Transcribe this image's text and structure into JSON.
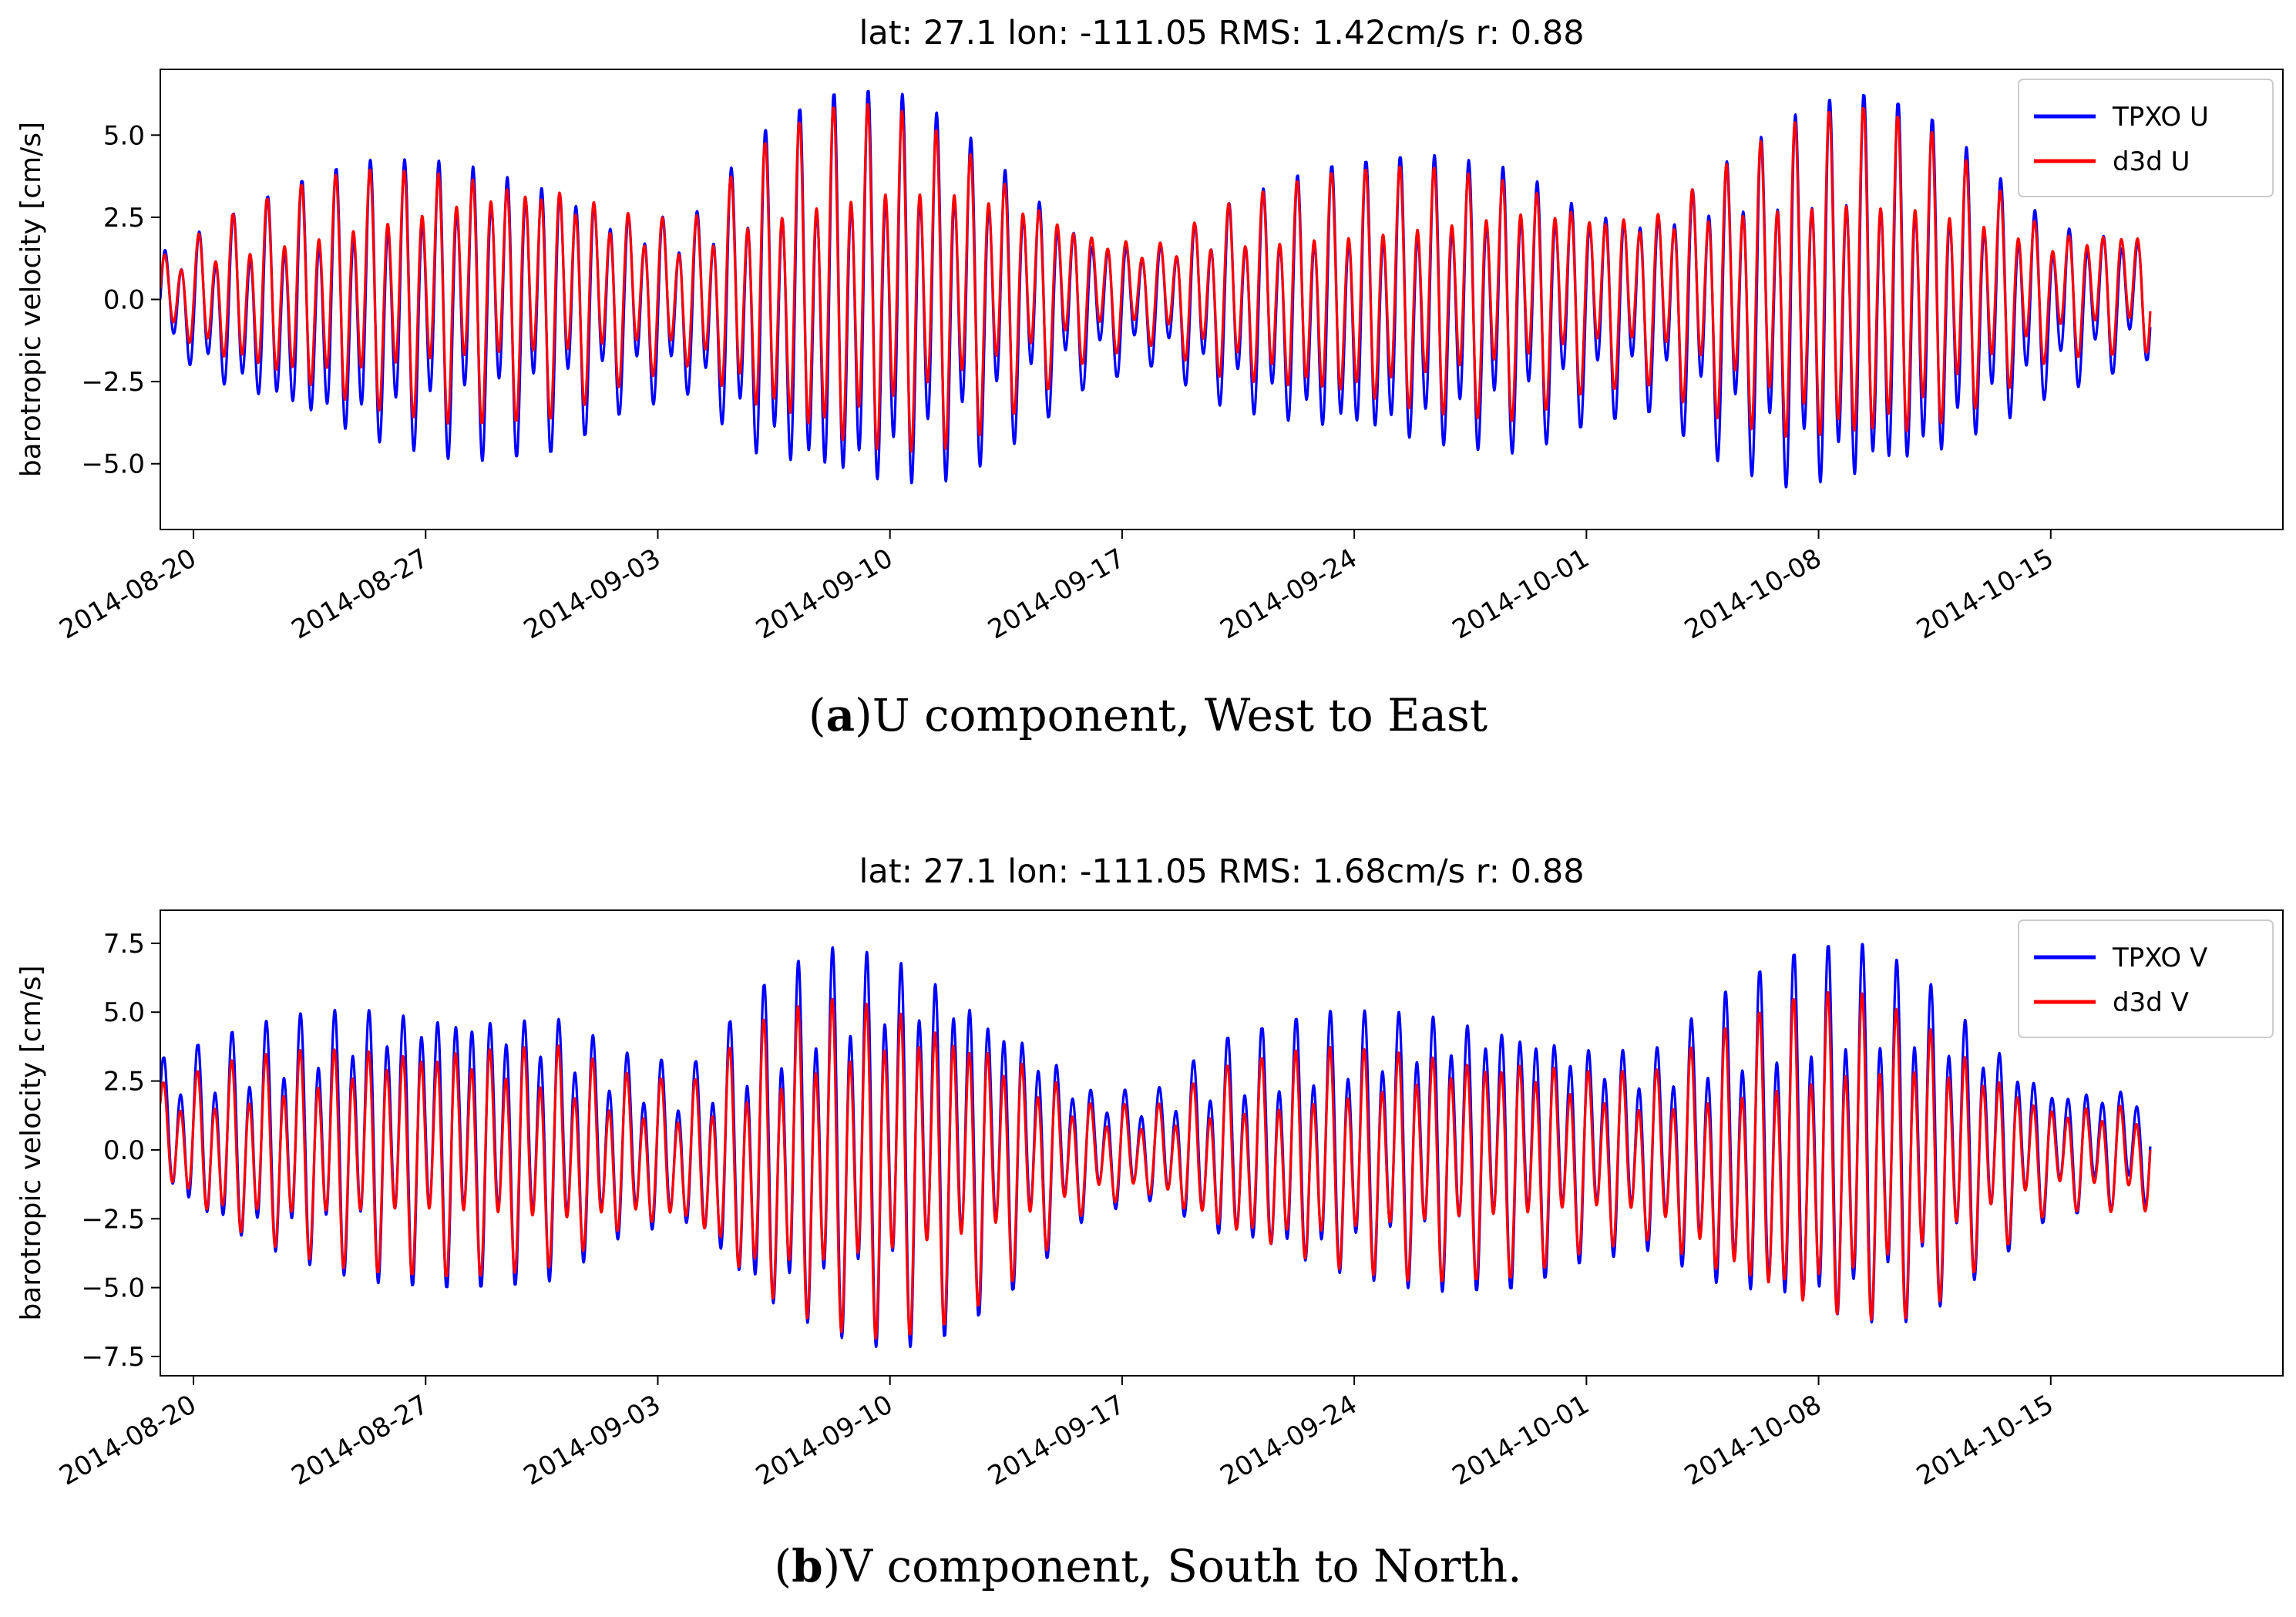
{
  "colors": {
    "tpxo": "#0000ff",
    "d3d": "#ff0000"
  },
  "captions": [
    {
      "letter": "a",
      "text": "U component, West to East"
    },
    {
      "letter": "b",
      "text": "V component, South to North."
    }
  ],
  "chart_data": [
    {
      "type": "line",
      "title": "lat: 27.1 lon: -111.05 RMS: 1.42cm/s r: 0.88",
      "xlabel": "",
      "ylabel": "barotropic velocity [cm/s]",
      "xlim": [
        "2014-08-19",
        "2014-10-22"
      ],
      "ylim": [
        -7.0,
        7.0
      ],
      "yticks": [
        -5.0,
        -2.5,
        0.0,
        2.5,
        5.0
      ],
      "ytick_labels": [
        "−5.0",
        "−2.5",
        "0.0",
        "2.5",
        "5.0"
      ],
      "xticks": [
        "2014-08-20",
        "2014-08-27",
        "2014-09-03",
        "2014-09-10",
        "2014-09-17",
        "2014-09-24",
        "2014-10-01",
        "2014-10-08",
        "2014-10-15"
      ],
      "x_range": [
        "2014-08-19",
        "2014-10-18"
      ],
      "grid": false,
      "legend_position": "top-right",
      "series": [
        {
          "name": "TPXO U",
          "color": "#0000ff",
          "envelope": {
            "x": [
              "2014-08-19",
              "2014-08-21",
              "2014-08-23",
              "2014-08-25",
              "2014-08-28",
              "2014-08-31",
              "2014-09-02",
              "2014-09-04",
              "2014-09-06",
              "2014-09-08",
              "2014-09-10",
              "2014-09-12",
              "2014-09-14",
              "2014-09-16",
              "2014-09-18",
              "2014-09-20",
              "2014-09-23",
              "2014-09-26",
              "2014-09-29",
              "2014-10-01",
              "2014-10-03",
              "2014-10-05",
              "2014-10-07",
              "2014-10-09",
              "2014-10-11",
              "2014-10-13",
              "2014-10-15",
              "2014-10-18"
            ],
            "upper": [
              1.5,
              2.5,
              3.5,
              4.2,
              4.6,
              4.3,
              3.0,
              2.6,
              5.0,
              6.2,
              6.4,
              5.6,
              4.0,
              2.2,
              1.8,
              3.0,
              4.0,
              4.4,
              4.3,
              3.3,
              3.0,
              4.5,
              5.6,
              6.3,
              5.8,
              4.2,
              2.5,
              2.1
            ],
            "lower": [
              -1.5,
              -3.0,
              -4.0,
              -4.8,
              -5.0,
              -4.6,
              -3.4,
              -3.0,
              -5.4,
              -6.5,
              -6.5,
              -5.8,
              -4.2,
              -2.6,
              -2.0,
              -3.4,
              -4.6,
              -5.0,
              -4.8,
              -3.8,
              -3.4,
              -5.0,
              -6.2,
              -6.5,
              -6.0,
              -4.4,
              -3.0,
              -1.8
            ]
          }
        },
        {
          "name": "d3d U",
          "color": "#ff0000",
          "envelope": {
            "x": [
              "2014-08-19",
              "2014-08-21",
              "2014-08-23",
              "2014-08-25",
              "2014-08-28",
              "2014-08-31",
              "2014-09-02",
              "2014-09-04",
              "2014-09-06",
              "2014-09-08",
              "2014-09-10",
              "2014-09-12",
              "2014-09-14",
              "2014-09-16",
              "2014-09-18",
              "2014-09-20",
              "2014-09-23",
              "2014-09-26",
              "2014-09-29",
              "2014-10-01",
              "2014-10-03",
              "2014-10-05",
              "2014-10-07",
              "2014-10-09",
              "2014-10-11",
              "2014-10-13",
              "2014-10-15",
              "2014-10-18"
            ],
            "upper": [
              1.3,
              2.5,
              3.4,
              4.0,
              4.3,
              4.0,
              2.9,
              2.4,
              4.6,
              5.8,
              6.0,
              5.2,
              3.7,
              2.3,
              1.8,
              2.9,
              3.8,
              4.1,
              4.0,
              3.1,
              2.9,
              4.2,
              5.3,
              5.9,
              5.4,
              3.9,
              2.2,
              2.4
            ],
            "lower": [
              -1.0,
              -2.2,
              -3.0,
              -3.6,
              -3.8,
              -3.6,
              -2.6,
              -2.2,
              -4.0,
              -5.2,
              -5.2,
              -4.6,
              -3.3,
              -1.8,
              -1.4,
              -2.6,
              -3.5,
              -3.8,
              -3.7,
              -2.8,
              -2.6,
              -3.8,
              -4.8,
              -5.3,
              -4.8,
              -3.4,
              -1.8,
              -1.6
            ]
          }
        }
      ]
    },
    {
      "type": "line",
      "title": "lat: 27.1 lon: -111.05 RMS: 1.68cm/s r: 0.88",
      "xlabel": "",
      "ylabel": "barotropic velocity [cm/s]",
      "xlim": [
        "2014-08-19",
        "2014-10-22"
      ],
      "ylim": [
        -8.2,
        8.7
      ],
      "yticks": [
        -7.5,
        -5.0,
        -2.5,
        0.0,
        2.5,
        5.0,
        7.5
      ],
      "ytick_labels": [
        "−7.5",
        "−5.0",
        "−2.5",
        "0.0",
        "2.5",
        "5.0",
        "7.5"
      ],
      "xticks": [
        "2014-08-20",
        "2014-08-27",
        "2014-09-03",
        "2014-09-10",
        "2014-09-17",
        "2014-09-24",
        "2014-10-01",
        "2014-10-08",
        "2014-10-15"
      ],
      "x_range": [
        "2014-08-19",
        "2014-10-18"
      ],
      "grid": false,
      "legend_position": "top-right",
      "series": [
        {
          "name": "TPXO V",
          "color": "#0000ff",
          "envelope": {
            "x": [
              "2014-08-19",
              "2014-08-21",
              "2014-08-23",
              "2014-08-25",
              "2014-08-28",
              "2014-08-31",
              "2014-09-02",
              "2014-09-04",
              "2014-09-06",
              "2014-09-08",
              "2014-09-10",
              "2014-09-12",
              "2014-09-14",
              "2014-09-16",
              "2014-09-18",
              "2014-09-20",
              "2014-09-23",
              "2014-09-26",
              "2014-09-29",
              "2014-10-01",
              "2014-10-03",
              "2014-10-05",
              "2014-10-07",
              "2014-10-09",
              "2014-10-11",
              "2014-10-13",
              "2014-10-15",
              "2014-10-18"
            ],
            "upper": [
              3.3,
              4.2,
              5.0,
              5.6,
              5.8,
              5.2,
              3.6,
              3.0,
              5.8,
              7.5,
              7.7,
              6.8,
              4.8,
              2.4,
              2.2,
              4.0,
              5.0,
              5.4,
              5.2,
              4.2,
              3.8,
              5.6,
              7.0,
              7.6,
              6.8,
              4.6,
              2.5,
              2.4
            ],
            "lower": [
              -1.6,
              -3.6,
              -4.4,
              -4.8,
              -5.0,
              -4.8,
              -3.4,
              -3.2,
              -6.4,
              -7.3,
              -7.4,
              -6.6,
              -4.8,
              -2.4,
              -2.0,
              -3.8,
              -5.0,
              -5.2,
              -5.0,
              -4.0,
              -3.8,
              -5.6,
              -6.8,
              -7.3,
              -6.6,
              -4.4,
              -2.4,
              -2.0
            ]
          }
        },
        {
          "name": "d3d V",
          "color": "#ff0000",
          "envelope": {
            "x": [
              "2014-08-19",
              "2014-08-21",
              "2014-08-23",
              "2014-08-25",
              "2014-08-28",
              "2014-08-31",
              "2014-09-02",
              "2014-09-04",
              "2014-09-06",
              "2014-09-08",
              "2014-09-10",
              "2014-09-12",
              "2014-09-14",
              "2014-09-16",
              "2014-09-18",
              "2014-09-20",
              "2014-09-23",
              "2014-09-26",
              "2014-09-29",
              "2014-10-01",
              "2014-10-03",
              "2014-10-05",
              "2014-10-07",
              "2014-10-09",
              "2014-10-11",
              "2014-10-13",
              "2014-10-15",
              "2014-10-18"
            ],
            "upper": [
              2.4,
              3.2,
              3.8,
              4.2,
              4.4,
              4.0,
              2.8,
              2.4,
              4.6,
              5.8,
              6.0,
              5.2,
              3.7,
              1.8,
              1.6,
              3.0,
              3.8,
              4.0,
              3.9,
              3.2,
              2.9,
              4.3,
              5.4,
              5.9,
              5.2,
              3.5,
              1.8,
              1.8
            ],
            "lower": [
              -1.3,
              -3.2,
              -4.0,
              -4.4,
              -4.6,
              -4.4,
              -3.2,
              -3.0,
              -5.8,
              -6.8,
              -6.9,
              -6.2,
              -4.5,
              -2.2,
              -1.8,
              -3.5,
              -4.6,
              -4.8,
              -4.6,
              -3.7,
              -3.5,
              -5.2,
              -6.4,
              -6.8,
              -6.2,
              -4.1,
              -2.2,
              -2.3
            ]
          }
        }
      ]
    }
  ]
}
